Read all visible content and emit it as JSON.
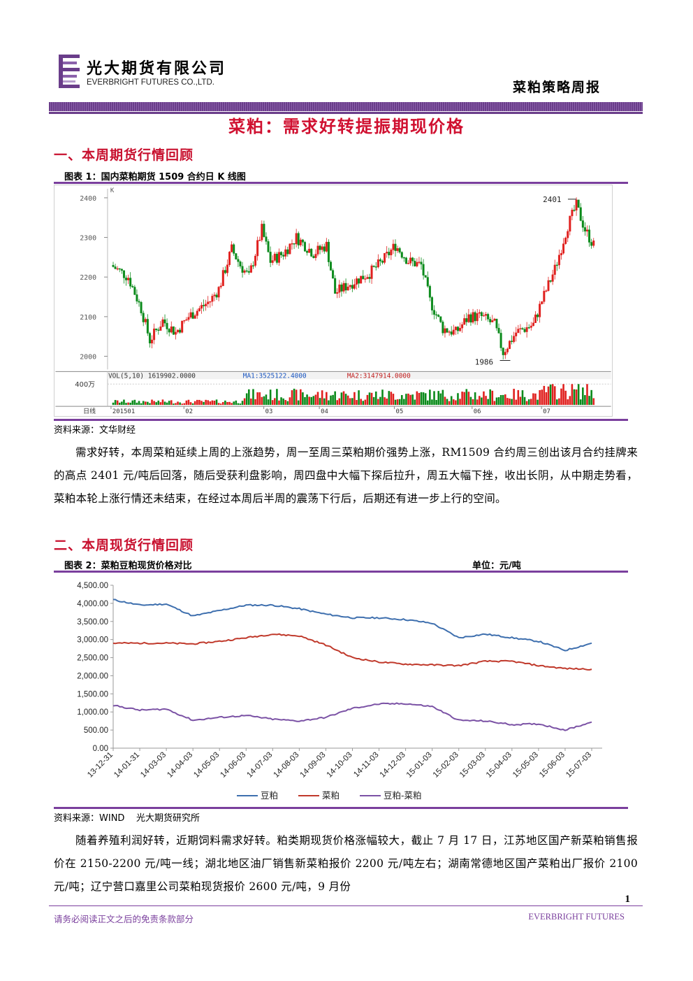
{
  "header": {
    "company_cn": "光大期货有限公司",
    "company_en": "EVERBRIGHT FUTURES CO.,LTD.",
    "report_type": "菜粕策略周报"
  },
  "title": "菜粕：需求好转提振期现价格",
  "section1": {
    "heading": "一、本周期货行情回顾",
    "figure_caption": "图表 1：国内菜粕期货 1509 合约日 K 线图",
    "source": "资料来源：文华财经",
    "paragraph": "需求好转，本周菜粕延续上周的上涨趋势，周一至周三菜粕期价强势上涨，RM1509 合约周三创出该月合约挂牌来的高点 2401 元/吨后回落，随后受获利盘影响，周四盘中大幅下探后拉升，周五大幅下挫，收出长阴，从中期走势看，菜粕本轮上涨行情还未结束，在经过本周后半周的震荡下行后，后期还有进一步上行的空间。"
  },
  "section2": {
    "heading": "二、本周现货行情回顾",
    "figure_caption": "图表 2：菜粕豆粕现货价格对比",
    "unit": "单位：元/吨",
    "source": "资料来源：WIND    光大期货研究所",
    "paragraph": "随着养殖利润好转，近期饲料需求好转。粕类期现货价格涨幅较大，截止 7 月 17 日，江苏地区国产新菜粕销售报价在 2150-2200 元/吨一线；湖北地区油厂销售新菜粕报价 2200 元/吨左右；湖南常德地区国产菜粕出厂报价 2100 元/吨；辽宁营口嘉里公司菜粕现货报价 2600 元/吨，9 月份"
  },
  "footer": {
    "disclaimer": "请务必阅读正文之后的免责条款部分",
    "brand": "EVERBRIGHT FUTURES",
    "page": "1"
  },
  "colors": {
    "brand_purple": "#7a3f9d",
    "title_red": "#d01030",
    "candle_up": "#e0201e",
    "candle_down": "#0a8a1a",
    "series_soymeal": "#3e6fae",
    "series_rapemeal": "#c0392b",
    "series_spread": "#7b52a5"
  },
  "kline_chart": {
    "corner_label": "K",
    "y_ticks": [
      "2400",
      "2300",
      "2200",
      "2100",
      "2000"
    ],
    "x_ticks": [
      "201501",
      "02",
      "03",
      "04",
      "05",
      "06",
      "07"
    ],
    "high_label": "2401",
    "low_label": "1986",
    "volume_label": "400万",
    "volume_axis_label": "日线",
    "indicator_vol": "VOL(5,10) 1619902.0000",
    "indicator_ma1": "MA1:3525122.4000",
    "indicator_ma2": "MA2:3147914.0000"
  },
  "chart_data": {
    "type": "line",
    "title": "",
    "xlabel": "",
    "ylabel": "",
    "ylim": [
      0,
      4500
    ],
    "y_ticks": [
      "4,500.00",
      "4,000.00",
      "3,500.00",
      "3,000.00",
      "2,500.00",
      "2,000.00",
      "1,500.00",
      "1,000.00",
      "500.00",
      "0.00"
    ],
    "x": [
      "13-12-31",
      "14-01-31",
      "14-03-03",
      "14-04-03",
      "14-05-03",
      "14-06-03",
      "14-07-03",
      "14-08-03",
      "14-09-03",
      "14-10-03",
      "14-11-03",
      "14-12-03",
      "15-01-03",
      "15-02-03",
      "15-03-03",
      "15-04-03",
      "15-05-03",
      "15-06-03",
      "15-07-03"
    ],
    "legend_position": "bottom",
    "series": [
      {
        "name": "豆粕",
        "values": [
          4100,
          3950,
          3980,
          3650,
          3800,
          3950,
          3950,
          3850,
          3700,
          3600,
          3600,
          3550,
          3450,
          3050,
          3150,
          3050,
          2950,
          2700,
          2900
        ]
      },
      {
        "name": "菜粕",
        "values": [
          2900,
          2900,
          2900,
          2880,
          2950,
          3050,
          3150,
          3100,
          2850,
          2500,
          2380,
          2320,
          2300,
          2280,
          2400,
          2400,
          2280,
          2200,
          2180
        ]
      },
      {
        "name": "豆粕-菜粕",
        "values": [
          1180,
          1050,
          1080,
          770,
          850,
          900,
          800,
          750,
          850,
          1100,
          1220,
          1230,
          1150,
          770,
          750,
          650,
          670,
          500,
          720
        ]
      }
    ]
  }
}
